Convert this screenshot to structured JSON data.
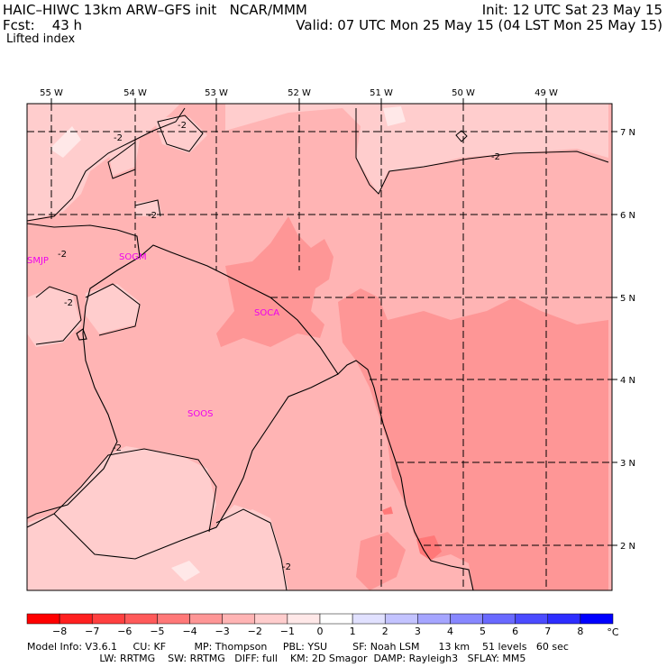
{
  "header": {
    "title_left": "HAIC–HIWC 13km ARW–GFS init   NCAR/MMM",
    "fcst": "Fcst:    43 h",
    "init": "Init: 12 UTC Sat 23 May 15",
    "valid": "Valid: 07 UTC Mon 25 May 15 (04 LST Mon 25 May 15)",
    "field": "Lifted index"
  },
  "map": {
    "lon_labels": [
      "55 W",
      "54 W",
      "53 W",
      "52 W",
      "51 W",
      "50 W",
      "49 W"
    ],
    "lat_labels": [
      "7 N",
      "6 N",
      "5 N",
      "4 N",
      "3 N",
      "2 N"
    ],
    "stations": [
      "SMJP",
      "SOGM",
      "SOCA",
      "SOOS"
    ],
    "contour_labels": [
      "-2",
      "-2",
      "-2",
      "-2",
      "-2",
      "-2",
      "-2",
      "-2"
    ]
  },
  "colorbar": {
    "ticks": [
      "−8",
      "−7",
      "−6",
      "−5",
      "−4",
      "−3",
      "−2",
      "−1",
      "0",
      "1",
      "2",
      "3",
      "4",
      "5",
      "6",
      "7",
      "8"
    ],
    "unit": "°C",
    "colors": [
      "#ff0000",
      "#ff2020",
      "#ff4040",
      "#ff5a5a",
      "#ff7878",
      "#fe9696",
      "#ffb4b4",
      "#ffcdcd",
      "#ffe8e8",
      "#ffffff",
      "#e1e1ff",
      "#c3c3ff",
      "#a5a5ff",
      "#8787ff",
      "#6969ff",
      "#4b4bff",
      "#2d2dff",
      "#0000ff"
    ]
  },
  "footer": {
    "line1": "Model Info: V3.6.1     CU: KF         MP: Thompson     PBL: YSU        SF: Noah LSM      13 km    51 levels   60 sec",
    "line2": "                       LW: RRTMG    SW: RRTMG   DIFF: full    KM: 2D Smagor  DAMP: Rayleigh3   SFLAY: MM5"
  }
}
